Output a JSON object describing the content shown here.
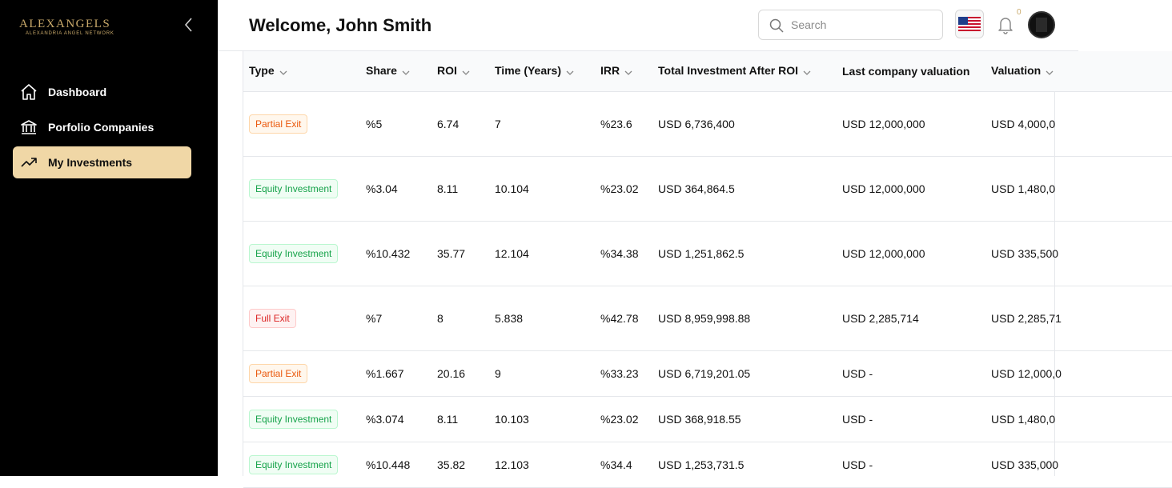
{
  "brand": {
    "logo_text": "ALEXANGELS",
    "logo_subtext": "ALEXANDRIA ANGEL NETWORK",
    "accent_color": "#c9a96a",
    "active_nav_color": "#f0d7a6"
  },
  "sidebar": {
    "items": [
      {
        "label": "Dashboard",
        "icon": "home-icon"
      },
      {
        "label": "Porfolio Companies",
        "icon": "bank-icon"
      },
      {
        "label": "My Investments",
        "icon": "trending-up-icon",
        "active": true
      }
    ]
  },
  "header": {
    "welcome": "Welcome, John Smith",
    "search_placeholder": "Search",
    "notification_count": "0"
  },
  "table": {
    "columns": [
      "Type",
      "Share",
      "ROI",
      "Time (Years)",
      "IRR",
      "Total Investment After ROI",
      "Last company valuation",
      "Valuation"
    ],
    "rows": [
      {
        "type": "Partial Exit",
        "type_kind": "partial",
        "share": "%5",
        "roi": "6.74",
        "time": "7",
        "irr": "%23.6",
        "total": "USD 6,736,400",
        "last_valuation": "USD 12,000,000",
        "valuation": "USD 4,000,0"
      },
      {
        "type": "Equity Investment",
        "type_kind": "equity",
        "share": "%3.04",
        "roi": "8.11",
        "time": "10.104",
        "irr": "%23.02",
        "total": "USD 364,864.5",
        "last_valuation": "USD 12,000,000",
        "valuation": "USD 1,480,0"
      },
      {
        "type": "Equity Investment",
        "type_kind": "equity",
        "share": "%10.432",
        "roi": "35.77",
        "time": "12.104",
        "irr": "%34.38",
        "total": "USD 1,251,862.5",
        "last_valuation": "USD 12,000,000",
        "valuation": "USD 335,500"
      },
      {
        "type": "Full Exit",
        "type_kind": "full",
        "share": "%7",
        "roi": "8",
        "time": "5.838",
        "irr": "%42.78",
        "total": "USD 8,959,998.88",
        "last_valuation": "USD 2,285,714",
        "valuation": "USD 2,285,71"
      },
      {
        "type": "Partial Exit",
        "type_kind": "partial",
        "share": "%1.667",
        "roi": "20.16",
        "time": "9",
        "irr": "%33.23",
        "total": "USD 6,719,201.05",
        "last_valuation": "USD -",
        "valuation": "USD 12,000,0"
      },
      {
        "type": "Equity Investment",
        "type_kind": "equity",
        "share": "%3.074",
        "roi": "8.11",
        "time": "10.103",
        "irr": "%23.02",
        "total": "USD 368,918.55",
        "last_valuation": "USD -",
        "valuation": "USD 1,480,0"
      },
      {
        "type": "Equity Investment",
        "type_kind": "equity",
        "share": "%10.448",
        "roi": "35.82",
        "time": "12.103",
        "irr": "%34.4",
        "total": "USD 1,253,731.5",
        "last_valuation": "USD -",
        "valuation": "USD 335,000"
      }
    ]
  }
}
